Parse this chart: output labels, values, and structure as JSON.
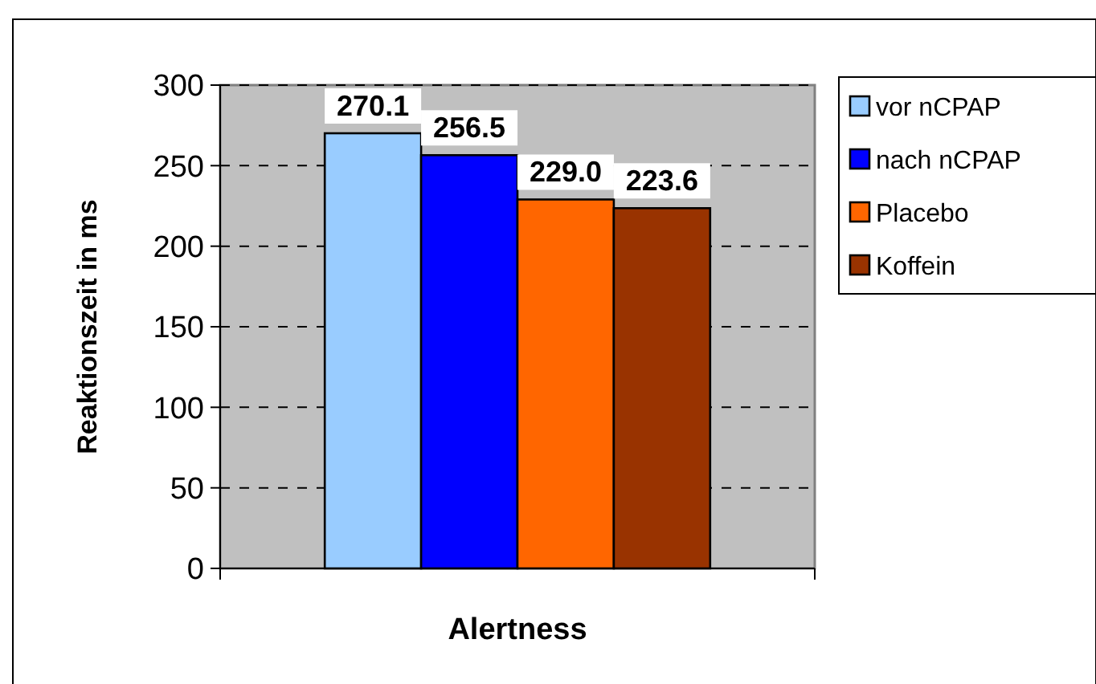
{
  "chart_data": {
    "type": "bar",
    "xlabel": "Alertness",
    "ylabel": "Reaktionszeit in ms",
    "categories": [
      null
    ],
    "series": [
      {
        "name": "vor nCPAP",
        "color": "#99ccff",
        "values": [
          270.1
        ],
        "value_labels": [
          "270.1"
        ]
      },
      {
        "name": "nach nCPAP",
        "color": "#0000ff",
        "values": [
          256.5
        ],
        "value_labels": [
          "256.5"
        ]
      },
      {
        "name": "Placebo",
        "color": "#ff6600",
        "values": [
          229.0
        ],
        "value_labels": [
          "229.0"
        ]
      },
      {
        "name": "Koffein",
        "color": "#993300",
        "values": [
          223.6
        ],
        "value_labels": [
          "223.6"
        ]
      }
    ],
    "ylim": [
      0,
      300
    ],
    "yticks": [
      0,
      50,
      100,
      150,
      200,
      250,
      300
    ],
    "grid": "y",
    "legend": "right"
  }
}
